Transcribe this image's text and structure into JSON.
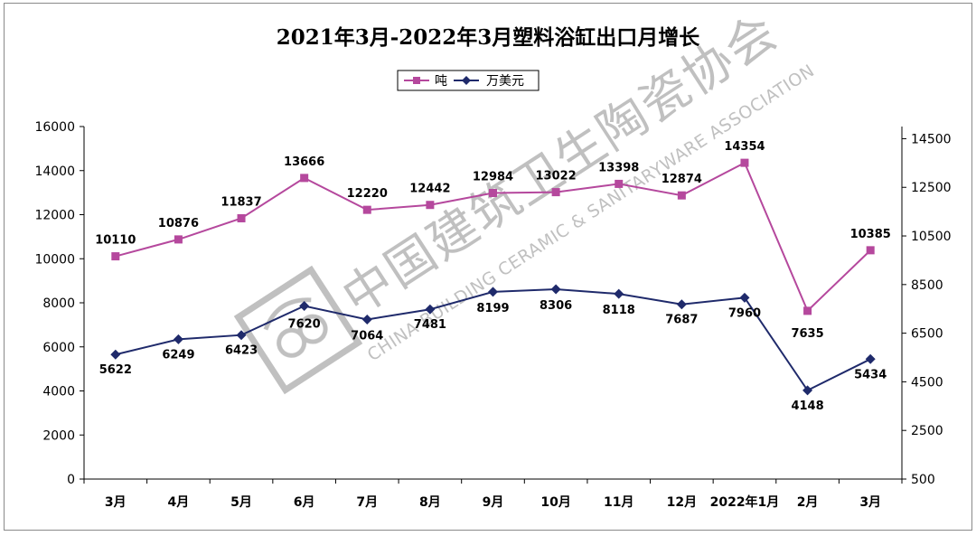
{
  "title": "2021年3月-2022年3月塑料浴缸出口月增长",
  "watermark": {
    "cn": "中国建筑卫生陶瓷协会",
    "en": "CHINA BUILDING CERAMIC & SANITARYWARE ASSOCIATION"
  },
  "colors": {
    "tons": "#b5489d",
    "usd": "#1f2a6b",
    "axis": "#000000",
    "watermark": "#b5b5b5"
  },
  "chart_data": {
    "type": "line",
    "title": "2021年3月-2022年3月塑料浴缸出口月增长",
    "categories": [
      "3月",
      "4月",
      "5月",
      "6月",
      "7月",
      "8月",
      "9月",
      "10月",
      "11月",
      "12月",
      "2022年1月",
      "2月",
      "3月"
    ],
    "series": [
      {
        "name": "吨",
        "axis": "left",
        "marker": "square",
        "values": [
          10110,
          10876,
          11837,
          13666,
          12220,
          12442,
          12984,
          13022,
          13398,
          12874,
          14354,
          7635,
          10385
        ]
      },
      {
        "name": "万美元",
        "axis": "right",
        "marker": "diamond",
        "values": [
          5622,
          6249,
          6423,
          7620,
          7064,
          7481,
          8199,
          8306,
          8118,
          7687,
          7960,
          4148,
          5434
        ]
      }
    ],
    "y_left": {
      "min": 0,
      "max": 16000,
      "ticks": [
        "0",
        "2000",
        "4000",
        "6000",
        "8000",
        "10000",
        "12000",
        "14000",
        "16000"
      ]
    },
    "y_right": {
      "min": 500,
      "max": 15000,
      "ticks": [
        "500",
        "2500",
        "4500",
        "6500",
        "8500",
        "10500",
        "12500",
        "14500"
      ]
    },
    "grid": false,
    "legend": "top-center"
  }
}
